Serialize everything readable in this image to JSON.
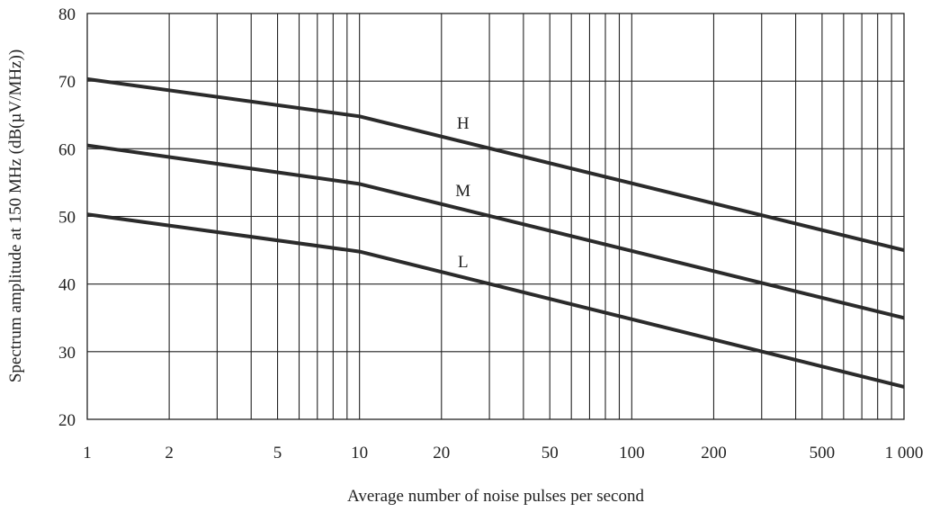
{
  "chart_data": {
    "type": "line",
    "x_scale": "log",
    "xlabel": "Average number of noise pulses per second",
    "ylabel": "Spectrum amplitude at 150 MHz (dB(µV/MHz))",
    "xlim": [
      1,
      1000
    ],
    "ylim": [
      20,
      80
    ],
    "grid": true,
    "x_tick_values": [
      1,
      2,
      5,
      10,
      20,
      50,
      100,
      200,
      500,
      1000
    ],
    "x_tick_labels": [
      "1",
      "2",
      "5",
      "10",
      "20",
      "50",
      "100",
      "200",
      "500",
      "1 000"
    ],
    "y_tick_values": [
      20,
      30,
      40,
      50,
      60,
      70,
      80
    ],
    "y_tick_labels": [
      "20",
      "30",
      "40",
      "50",
      "60",
      "70",
      "80"
    ],
    "series": [
      {
        "name": "H",
        "x": [
          1,
          10,
          1000
        ],
        "y": [
          70.3,
          64.8,
          45
        ]
      },
      {
        "name": "M",
        "x": [
          1,
          10,
          1000
        ],
        "y": [
          60.5,
          54.8,
          35
        ]
      },
      {
        "name": "L",
        "x": [
          1,
          10,
          1000
        ],
        "y": [
          50.3,
          44.8,
          24.8
        ]
      }
    ],
    "series_label_positions": [
      {
        "name": "H",
        "x": 24,
        "y": 63
      },
      {
        "name": "M",
        "x": 24,
        "y": 53
      },
      {
        "name": "L",
        "x": 24,
        "y": 42.5
      }
    ]
  },
  "colors": {
    "line": "#2b2b2b",
    "grid": "#222222",
    "text": "#222222",
    "background": "#ffffff"
  }
}
